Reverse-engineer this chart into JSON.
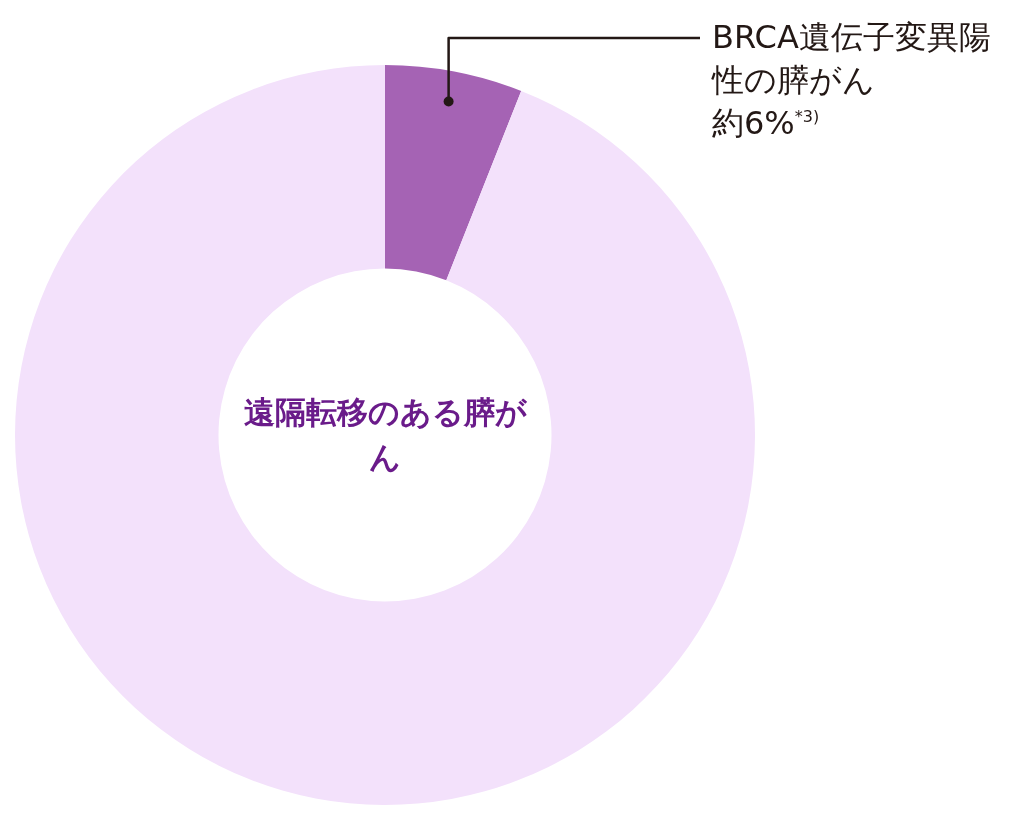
{
  "chart_data": {
    "type": "donut",
    "title": "遠隔転移のある膵がん",
    "categories": [
      "BRCA遺伝子変異陽性の膵がん",
      null
    ],
    "values": [
      6,
      94
    ],
    "colors": [
      "#a563b4",
      "#f3e1fb"
    ],
    "value_labels": [
      "約6%$^{*3)}$",
      null
    ],
    "legend": false
  }
}
